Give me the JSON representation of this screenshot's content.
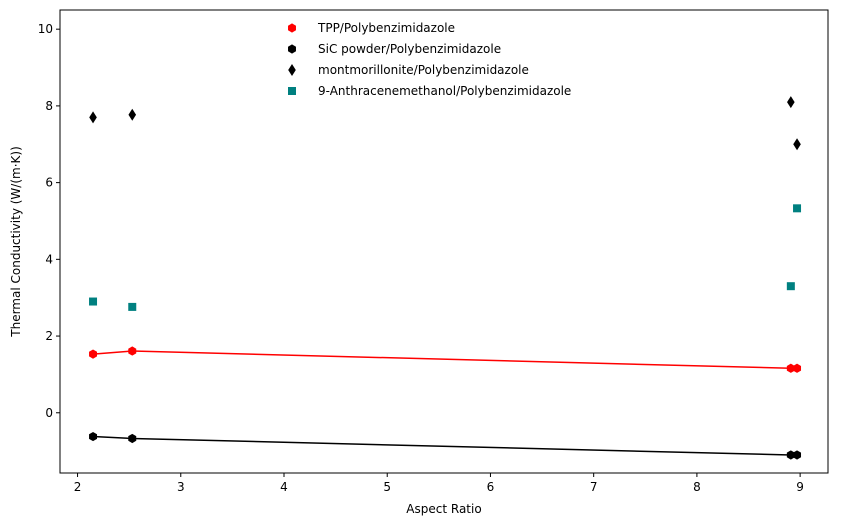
{
  "chart_data": {
    "type": "scatter",
    "title": "",
    "xlabel": "Aspect Ratio",
    "ylabel": "Thermal Conductivity (W/(m·K))",
    "xlim": [
      1.83,
      9.27
    ],
    "ylim": [
      -1.57,
      10.5
    ],
    "xticks": [
      2,
      3,
      4,
      5,
      6,
      7,
      8,
      9
    ],
    "yticks": [
      0,
      2,
      4,
      6,
      8,
      10
    ],
    "grid": false,
    "legend_position": "top-center",
    "series": [
      {
        "name": "TPP/Polybenzimidazole",
        "color": "#ff0000",
        "marker": "hexagon",
        "fit_line": true,
        "points": [
          [
            2.15,
            1.53
          ],
          [
            2.53,
            1.61
          ],
          [
            8.91,
            1.16
          ],
          [
            8.97,
            1.16
          ]
        ]
      },
      {
        "name": "SiC powder/Polybenzimidazole",
        "color": "#000000",
        "marker": "hexagon",
        "fit_line": true,
        "points": [
          [
            2.15,
            -0.62
          ],
          [
            2.53,
            -0.67
          ],
          [
            8.91,
            -1.1
          ],
          [
            8.97,
            -1.1
          ]
        ]
      },
      {
        "name": "montmorillonite/Polybenzimidazole",
        "color": "#000000",
        "marker": "thin-diamond",
        "fit_line": false,
        "points": [
          [
            2.15,
            7.7
          ],
          [
            2.53,
            7.77
          ],
          [
            8.91,
            8.1
          ],
          [
            8.97,
            7.0
          ]
        ]
      },
      {
        "name": "9-Anthracenemethanol/Polybenzimidazole",
        "color": "#008080",
        "marker": "square",
        "fit_line": false,
        "points": [
          [
            2.15,
            2.9
          ],
          [
            2.53,
            2.76
          ],
          [
            8.91,
            3.3
          ],
          [
            8.97,
            5.33
          ]
        ]
      }
    ]
  }
}
